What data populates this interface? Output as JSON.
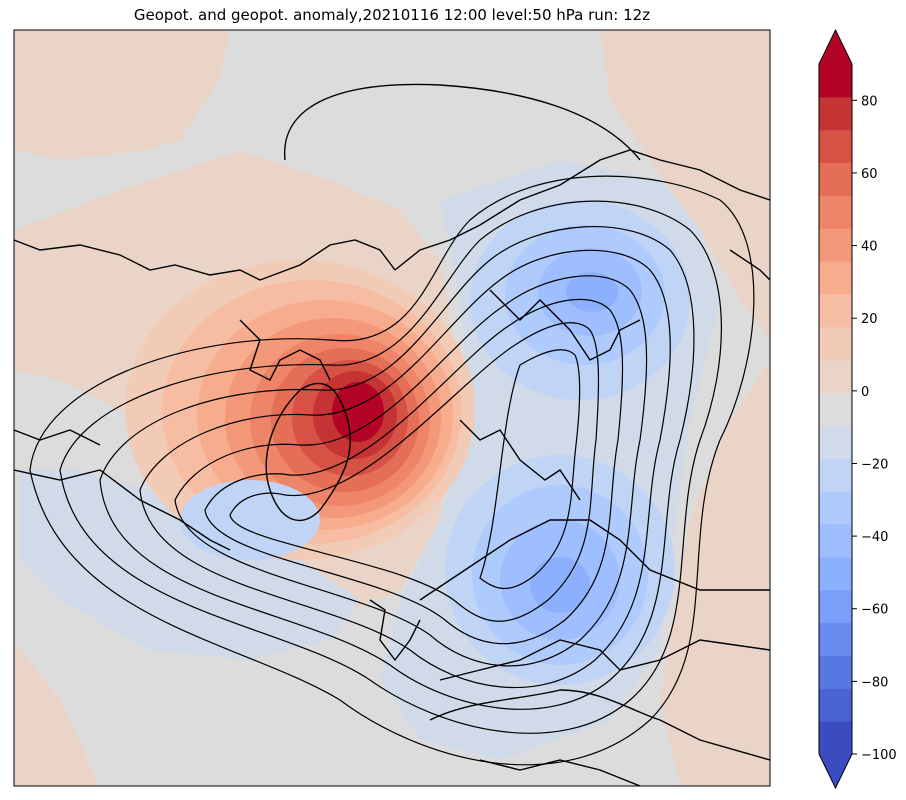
{
  "title": "Geopot. and geopot. anomaly,20210116 12:00 level:50 hPa run: 12z",
  "colorbar": {
    "ticks": [
      "80",
      "60",
      "40",
      "20",
      "0",
      "−20",
      "−40",
      "−60",
      "−80",
      "−100"
    ],
    "min": -100,
    "max": 90,
    "step": 10,
    "levels_colors": [
      "#3b4cc0",
      "#4a63d3",
      "#5977e3",
      "#6a8bef",
      "#7b9ff9",
      "#8db0fe",
      "#9ebeff",
      "#afcafc",
      "#c0d4f5",
      "#d0dae9",
      "#dddcdc",
      "#ead4c8",
      "#f2cbb7",
      "#f6bda2",
      "#f7ac8e",
      "#f4987a",
      "#ee8468",
      "#e46e56",
      "#d65244",
      "#c53334",
      "#b40426"
    ],
    "under_color": "#3b4cc0",
    "over_color": "#b40426"
  },
  "map_colors": {
    "neutral": "#dddcdc",
    "warm_faint": "#ead4c8",
    "cool_faint": "#d0dae9"
  }
}
